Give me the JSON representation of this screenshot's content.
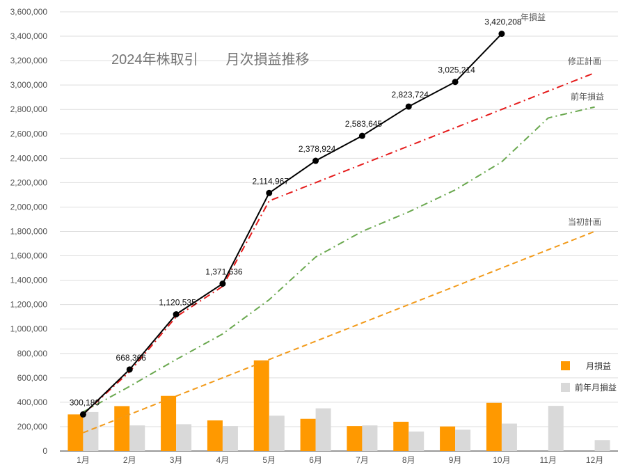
{
  "chart_data": {
    "type": "bar",
    "title": "2024年株取引　　月次損益推移",
    "categories": [
      "1月",
      "2月",
      "3月",
      "4月",
      "5月",
      "6月",
      "7月",
      "8月",
      "9月",
      "10月",
      "11月",
      "12月"
    ],
    "ylim": [
      0,
      3600000
    ],
    "y_ticks": [
      "0",
      "200,000",
      "400,000",
      "600,000",
      "800,000",
      "1,000,000",
      "1,200,000",
      "1,400,000",
      "1,600,000",
      "1,800,000",
      "2,000,000",
      "2,200,000",
      "2,400,000",
      "2,600,000",
      "2,800,000",
      "3,000,000",
      "3,200,000",
      "3,400,000",
      "3,600,000"
    ],
    "grid": true,
    "legend_position": "right",
    "series": [
      {
        "name": "月損益",
        "kind": "bar",
        "color": "#FF9900",
        "values": [
          300180,
          368186,
          452169,
          251101,
          743331,
          263957,
          204721,
          240079,
          201490,
          394994,
          null,
          null
        ]
      },
      {
        "name": "前年月損益",
        "kind": "bar",
        "color": "#D9D9D9",
        "values": [
          320000,
          210000,
          220000,
          205000,
          290000,
          350000,
          210000,
          160000,
          175000,
          225000,
          370000,
          90000
        ]
      },
      {
        "name": "年損益",
        "kind": "line",
        "color": "#000000",
        "values": [
          300180,
          668366,
          1120535,
          1371636,
          2114967,
          2378924,
          2583645,
          2823724,
          3025214,
          3420208,
          null,
          null
        ],
        "labels": [
          "300,180",
          "668,366",
          "1,120,535",
          "1,371,636",
          "2,114,967",
          "2,378,924",
          "2,583,645",
          "2,823,724",
          "3,025,214",
          "3,420,208",
          "",
          ""
        ]
      },
      {
        "name": "修正計画",
        "kind": "line",
        "style": "dashdot",
        "color": "#E51B1B",
        "values": [
          300180,
          650000,
          1100000,
          1350000,
          2050000,
          2200000,
          2350000,
          2500000,
          2650000,
          2800000,
          2950000,
          3100000
        ]
      },
      {
        "name": "前年損益",
        "kind": "line",
        "style": "dashdot",
        "color": "#6AA84F",
        "values": [
          320000,
          530000,
          750000,
          960000,
          1240000,
          1590000,
          1800000,
          1960000,
          2140000,
          2370000,
          2730000,
          2820000
        ]
      },
      {
        "name": "当初計画",
        "kind": "line",
        "style": "dashed",
        "color": "#F29A1A",
        "values": [
          150000,
          300000,
          450000,
          600000,
          750000,
          900000,
          1050000,
          1200000,
          1350000,
          1500000,
          1650000,
          1800000
        ]
      }
    ],
    "line_end_labels": {
      "annual": "年損益",
      "revised": "修正計画",
      "prior": "前年損益",
      "initial": "当初計画"
    }
  }
}
